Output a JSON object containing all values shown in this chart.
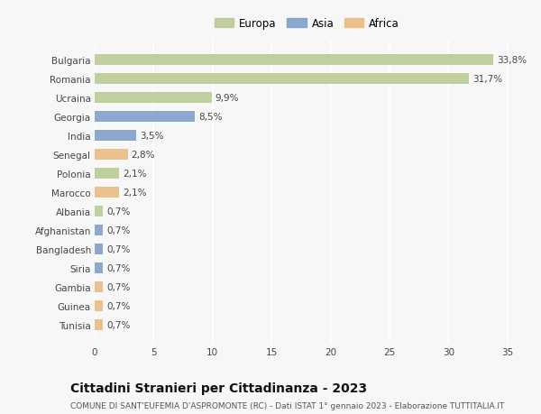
{
  "categories": [
    "Bulgaria",
    "Romania",
    "Ucraina",
    "Georgia",
    "India",
    "Senegal",
    "Polonia",
    "Marocco",
    "Albania",
    "Afghanistan",
    "Bangladesh",
    "Siria",
    "Gambia",
    "Guinea",
    "Tunisia"
  ],
  "values": [
    33.8,
    31.7,
    9.9,
    8.5,
    3.5,
    2.8,
    2.1,
    2.1,
    0.7,
    0.7,
    0.7,
    0.7,
    0.7,
    0.7,
    0.7
  ],
  "labels": [
    "33,8%",
    "31,7%",
    "9,9%",
    "8,5%",
    "3,5%",
    "2,8%",
    "2,1%",
    "2,1%",
    "0,7%",
    "0,7%",
    "0,7%",
    "0,7%",
    "0,7%",
    "0,7%",
    "0,7%"
  ],
  "continents": [
    "Europa",
    "Europa",
    "Europa",
    "Asia",
    "Asia",
    "Africa",
    "Europa",
    "Africa",
    "Europa",
    "Asia",
    "Asia",
    "Asia",
    "Africa",
    "Africa",
    "Africa"
  ],
  "colors": {
    "Europa": "#b5c98e",
    "Asia": "#7b9bc8",
    "Africa": "#e8b87a"
  },
  "legend_labels": [
    "Europa",
    "Asia",
    "Africa"
  ],
  "xlim": [
    0,
    36
  ],
  "xticks": [
    0,
    5,
    10,
    15,
    20,
    25,
    30,
    35
  ],
  "title": "Cittadini Stranieri per Cittadinanza - 2023",
  "subtitle": "COMUNE DI SANT'EUFEMIA D'ASPROMONTE (RC) - Dati ISTAT 1° gennaio 2023 - Elaborazione TUTTITALIA.IT",
  "background_color": "#f7f7f7",
  "plot_bg_color": "#f7f7f7",
  "grid_color": "#ffffff",
  "bar_height": 0.55,
  "label_fontsize": 7.5,
  "tick_fontsize": 7.5,
  "title_fontsize": 10,
  "subtitle_fontsize": 6.5,
  "legend_fontsize": 8.5
}
